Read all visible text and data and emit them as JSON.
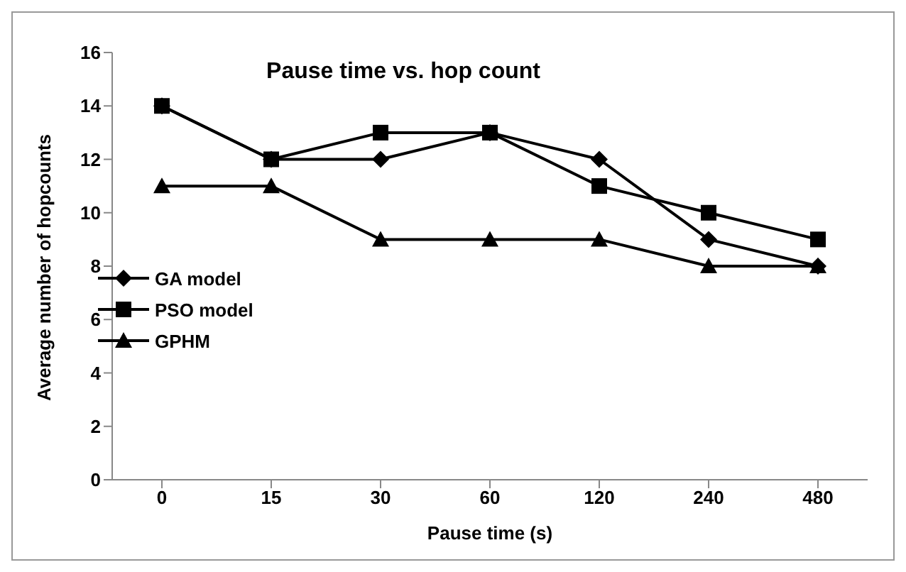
{
  "chart_data": {
    "type": "line",
    "title": "Pause time vs. hop count",
    "xlabel": "Pause time (s)",
    "ylabel": "Average number of hopcounts",
    "categories": [
      "0",
      "15",
      "30",
      "60",
      "120",
      "240",
      "480"
    ],
    "series": [
      {
        "name": "GA model",
        "color": "#000000",
        "marker": "diamond",
        "values": [
          14,
          12,
          12,
          13,
          12,
          9,
          8
        ]
      },
      {
        "name": "PSO model",
        "color": "#000000",
        "marker": "square",
        "values": [
          14,
          12,
          13,
          13,
          11,
          10,
          9
        ]
      },
      {
        "name": "GPHM",
        "color": "#000000",
        "marker": "triangle",
        "values": [
          11,
          11,
          9,
          9,
          9,
          8,
          8
        ]
      }
    ],
    "ylim": [
      0,
      16
    ],
    "yticks": [
      0,
      2,
      4,
      6,
      8,
      10,
      12,
      14,
      16
    ],
    "grid": false,
    "legend": "left",
    "line_style": "solid"
  }
}
